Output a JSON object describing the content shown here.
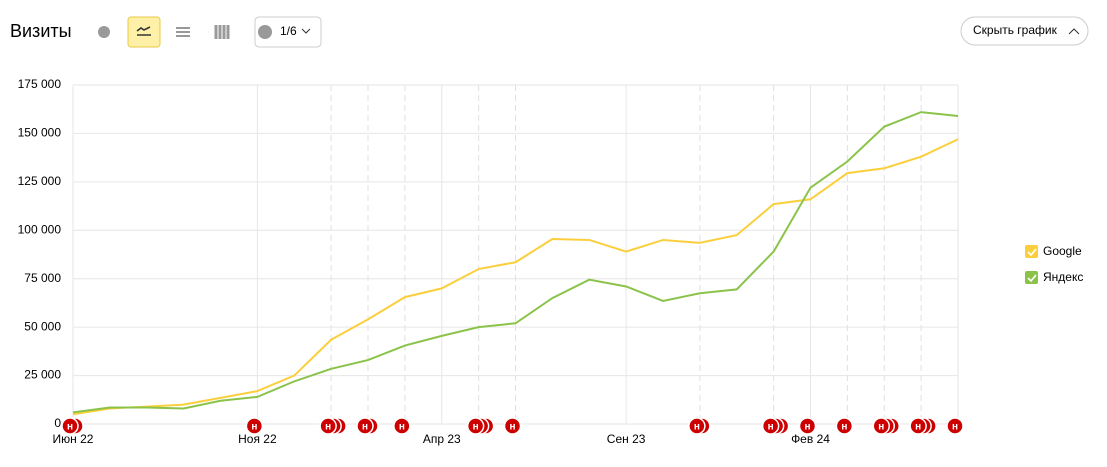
{
  "header": {
    "title": "Визиты",
    "comments_button": "1/6",
    "hide_button": "Скрыть график"
  },
  "chart_data": {
    "type": "line",
    "categories": [
      "Июн 22",
      null,
      null,
      null,
      null,
      "Ноя 22",
      null,
      null,
      null,
      null,
      "Апр 23",
      null,
      null,
      null,
      null,
      "Сен 23",
      null,
      null,
      null,
      null,
      "Фев 24",
      null,
      null,
      null,
      null
    ],
    "series": [
      {
        "name": "Google",
        "color": "#fbcf3c",
        "values": [
          5000,
          8000,
          9000,
          10000,
          13500,
          17000,
          25000,
          43500,
          54000,
          65500,
          70000,
          80000,
          83500,
          95500,
          95000,
          89000,
          95000,
          93500,
          97500,
          113500,
          116000,
          129500,
          132000,
          138000,
          147000
        ]
      },
      {
        "name": "Яндекс",
        "color": "#8bc34a",
        "values": [
          6000,
          8500,
          8500,
          8000,
          12000,
          14000,
          22000,
          28500,
          33000,
          40500,
          45500,
          50000,
          52000,
          65000,
          74500,
          71000,
          63500,
          67500,
          69500,
          89000,
          122000,
          135500,
          153500,
          161000,
          159000
        ]
      }
    ],
    "ylim": [
      0,
      175000
    ],
    "yticks": [
      0,
      {
        "value": 25000,
        "label": "25 000"
      },
      {
        "value": 50000,
        "label": "50 000"
      },
      {
        "value": 75000,
        "label": "75 000"
      },
      {
        "value": 100000,
        "label": "100 000"
      },
      {
        "value": 125000,
        "label": "125 000"
      },
      {
        "value": 150000,
        "label": "150 000"
      },
      {
        "value": 175000,
        "label": "175 000"
      }
    ],
    "grid": true,
    "legend": "right",
    "annotations": [
      {
        "x": 0,
        "label": "н",
        "stack": 2
      },
      {
        "x": 5,
        "label": "н",
        "stack": 1
      },
      {
        "x": 7,
        "label": "н",
        "stack": 3
      },
      {
        "x": 8,
        "label": "н",
        "stack": 2
      },
      {
        "x": 9,
        "label": "н",
        "stack": 1
      },
      {
        "x": 11,
        "label": "н",
        "stack": 3
      },
      {
        "x": 12,
        "label": "н",
        "stack": 1
      },
      {
        "x": 17,
        "label": "н",
        "stack": 2
      },
      {
        "x": 19,
        "label": "н",
        "stack": 3
      },
      {
        "x": 20,
        "label": "н",
        "stack": 1
      },
      {
        "x": 21,
        "label": "н",
        "stack": 1
      },
      {
        "x": 22,
        "label": "н",
        "stack": 3
      },
      {
        "x": 23,
        "label": "н",
        "stack": 3
      },
      {
        "x": 24,
        "label": "н",
        "stack": 1
      }
    ]
  }
}
